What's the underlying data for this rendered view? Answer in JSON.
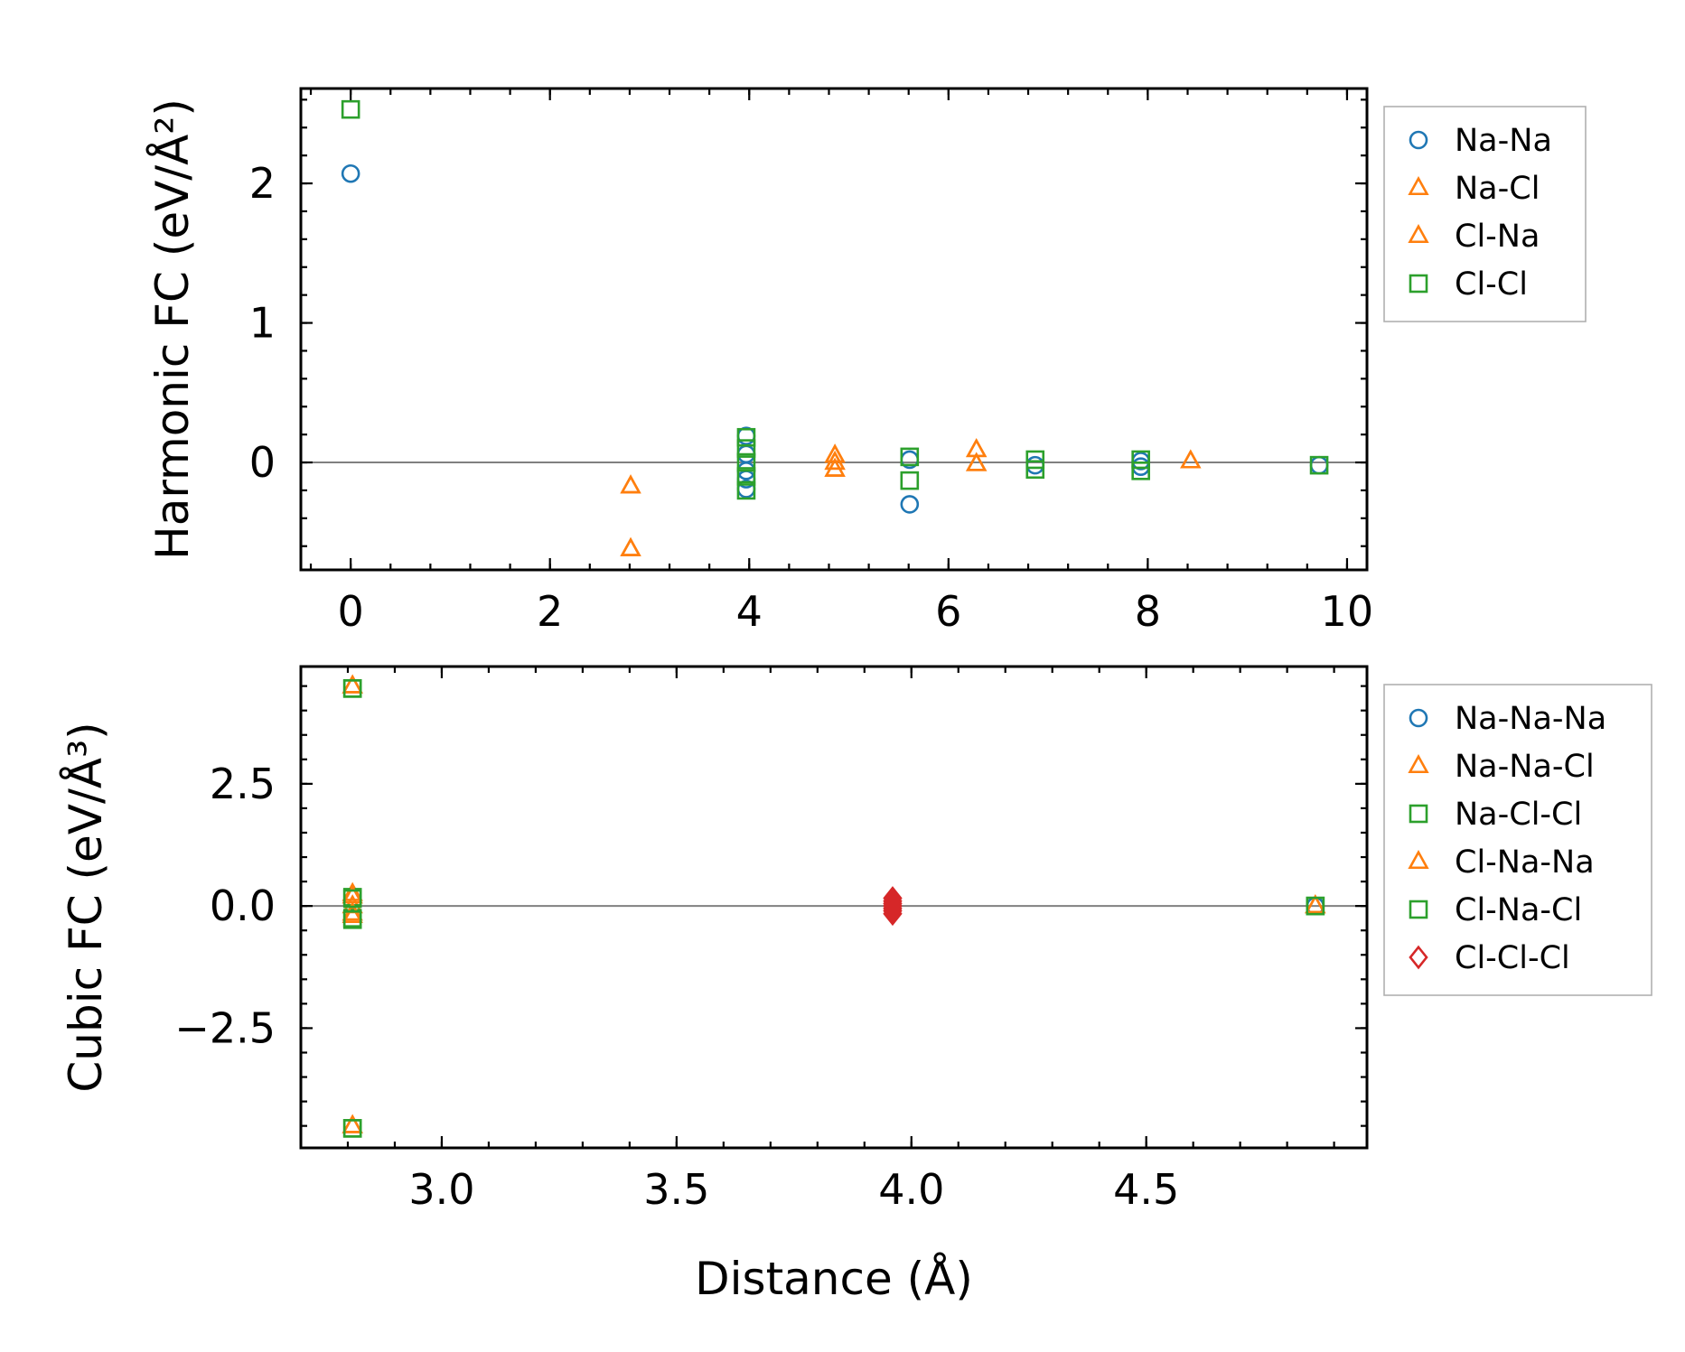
{
  "colors": {
    "blue": "#1f77b4",
    "orange": "#ff7f0e",
    "green": "#2ca02c",
    "red": "#d62728",
    "zero_line": "#808080",
    "frame": "#000000"
  },
  "chart_data": [
    {
      "type": "scatter",
      "panel": "top",
      "title": "",
      "xlabel": "",
      "ylabel": "Harmonic FC (eV/Å²)",
      "xlim": [
        -0.5,
        10.2
      ],
      "ylim": [
        -0.77,
        2.68
      ],
      "xticks": [
        0,
        2,
        4,
        6,
        8,
        10
      ],
      "yticks": [
        0,
        1,
        2
      ],
      "grid": false,
      "legend_position": "outside-right-top",
      "zero_line": true,
      "series": [
        {
          "name": "Na-Na",
          "marker": "circle",
          "color": "#1f77b4",
          "x": [
            0.0,
            3.97,
            3.97,
            3.97,
            3.97,
            3.97,
            5.61,
            5.61,
            6.87,
            7.93,
            7.93,
            9.72
          ],
          "y": [
            2.07,
            0.19,
            0.06,
            -0.06,
            -0.12,
            -0.19,
            0.02,
            -0.3,
            -0.02,
            0.01,
            -0.03,
            -0.02
          ]
        },
        {
          "name": "Na-Cl",
          "marker": "triangle",
          "color": "#ff7f0e",
          "x": [
            2.81,
            2.81,
            4.86,
            4.86,
            4.86,
            6.28,
            6.28,
            8.43
          ],
          "y": [
            -0.17,
            -0.62,
            0.05,
            0.0,
            -0.05,
            0.09,
            -0.01,
            0.01
          ]
        },
        {
          "name": "Cl-Na",
          "marker": "triangle",
          "color": "#ff7f0e",
          "x": [
            2.81,
            2.81,
            4.86,
            4.86,
            4.86,
            6.28,
            6.28,
            8.43
          ],
          "y": [
            -0.17,
            -0.62,
            0.05,
            0.0,
            -0.05,
            0.09,
            -0.01,
            0.01
          ]
        },
        {
          "name": "Cl-Cl",
          "marker": "square",
          "color": "#2ca02c",
          "x": [
            0.0,
            3.97,
            3.97,
            3.97,
            3.97,
            3.97,
            5.61,
            5.61,
            6.87,
            6.87,
            7.93,
            7.93,
            9.72
          ],
          "y": [
            2.53,
            0.18,
            0.1,
            0.0,
            -0.1,
            -0.2,
            0.04,
            -0.13,
            0.02,
            -0.05,
            0.02,
            -0.06,
            -0.02
          ]
        }
      ]
    },
    {
      "type": "scatter",
      "panel": "bottom",
      "title": "",
      "xlabel": "Distance (Å)",
      "ylabel": "Cubic FC (eV/Å³)",
      "xlim": [
        2.7,
        4.97
      ],
      "ylim": [
        -4.95,
        4.9
      ],
      "xticks": [
        3.0,
        3.5,
        4.0,
        4.5
      ],
      "xtick_labels": [
        "3.0",
        "3.5",
        "4.0",
        "4.5"
      ],
      "yticks": [
        -2.5,
        0.0,
        2.5
      ],
      "ytick_labels": [
        "−2.5",
        "0.0",
        "2.5"
      ],
      "grid": false,
      "legend_position": "outside-right-top",
      "zero_line": true,
      "series": [
        {
          "name": "Na-Na-Na",
          "marker": "circle",
          "color": "#1f77b4",
          "x": [
            4.86
          ],
          "y": [
            0.0
          ]
        },
        {
          "name": "Na-Na-Cl",
          "marker": "triangle",
          "color": "#ff7f0e",
          "x": [
            2.81,
            2.81,
            2.81,
            2.81,
            2.81,
            4.86
          ],
          "y": [
            4.5,
            0.25,
            -0.2,
            -4.5,
            0.0,
            0.0
          ]
        },
        {
          "name": "Na-Cl-Cl",
          "marker": "square",
          "color": "#2ca02c",
          "x": [
            2.81,
            2.81,
            2.81,
            2.81,
            4.86
          ],
          "y": [
            4.45,
            0.18,
            -0.25,
            -4.55,
            0.0
          ]
        },
        {
          "name": "Cl-Na-Na",
          "marker": "triangle",
          "color": "#ff7f0e",
          "x": [
            2.81,
            2.81,
            2.81,
            2.81,
            4.86
          ],
          "y": [
            4.5,
            0.2,
            -0.15,
            -4.5,
            0.0
          ]
        },
        {
          "name": "Cl-Na-Cl",
          "marker": "square",
          "color": "#2ca02c",
          "x": [
            2.81,
            2.81,
            2.81,
            2.81,
            4.86
          ],
          "y": [
            4.45,
            0.15,
            -0.28,
            -4.55,
            0.0
          ]
        },
        {
          "name": "Cl-Cl-Cl",
          "marker": "diamond",
          "color": "#d62728",
          "filled": true,
          "x": [
            3.96,
            3.96,
            3.96,
            3.96,
            3.96,
            3.96,
            3.96
          ],
          "y": [
            0.16,
            0.1,
            0.05,
            0.0,
            -0.05,
            -0.1,
            -0.16
          ]
        }
      ]
    }
  ]
}
